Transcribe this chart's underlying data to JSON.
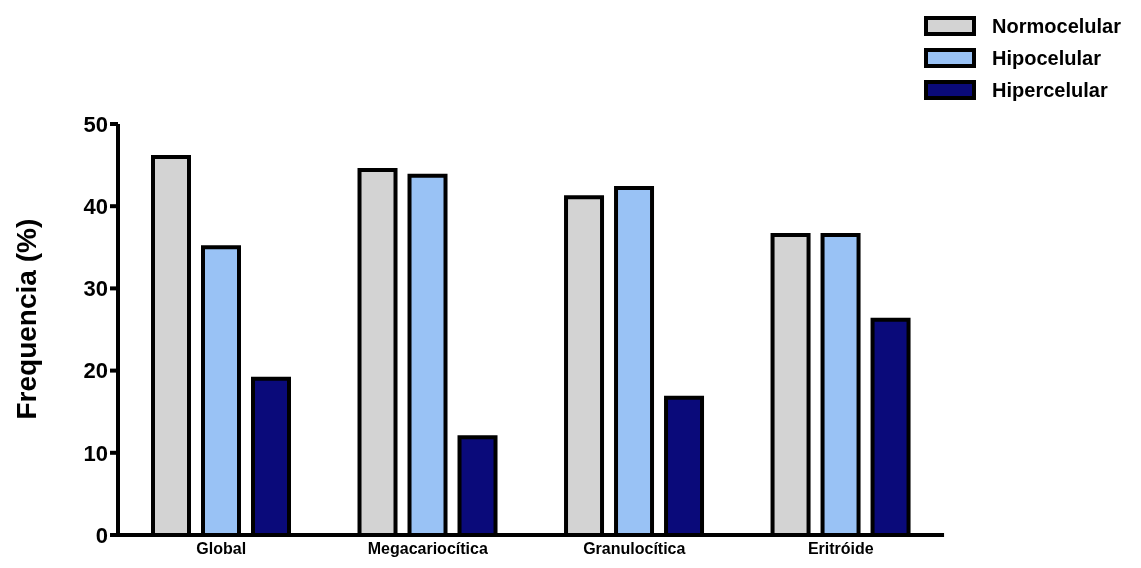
{
  "chart_data": {
    "type": "bar",
    "ylabel": "Frequencia (%)",
    "categories": [
      "Global",
      "Megacariocítica",
      "Granulocítica",
      "Eritróide"
    ],
    "series": [
      {
        "name": "Normocelular",
        "color": "#d3d3d3",
        "values": [
          46,
          44.4,
          41.1,
          36.5
        ]
      },
      {
        "name": "Hipocelular",
        "color": "#99c2f5",
        "values": [
          35,
          43.7,
          42.2,
          36.5
        ]
      },
      {
        "name": "Hipercelular",
        "color": "#0a0a7a",
        "values": [
          19,
          11.9,
          16.7,
          26.2
        ]
      }
    ],
    "ylim": [
      0,
      50
    ],
    "yticks": [
      0,
      10,
      20,
      30,
      40,
      50
    ],
    "legend": "top right"
  }
}
